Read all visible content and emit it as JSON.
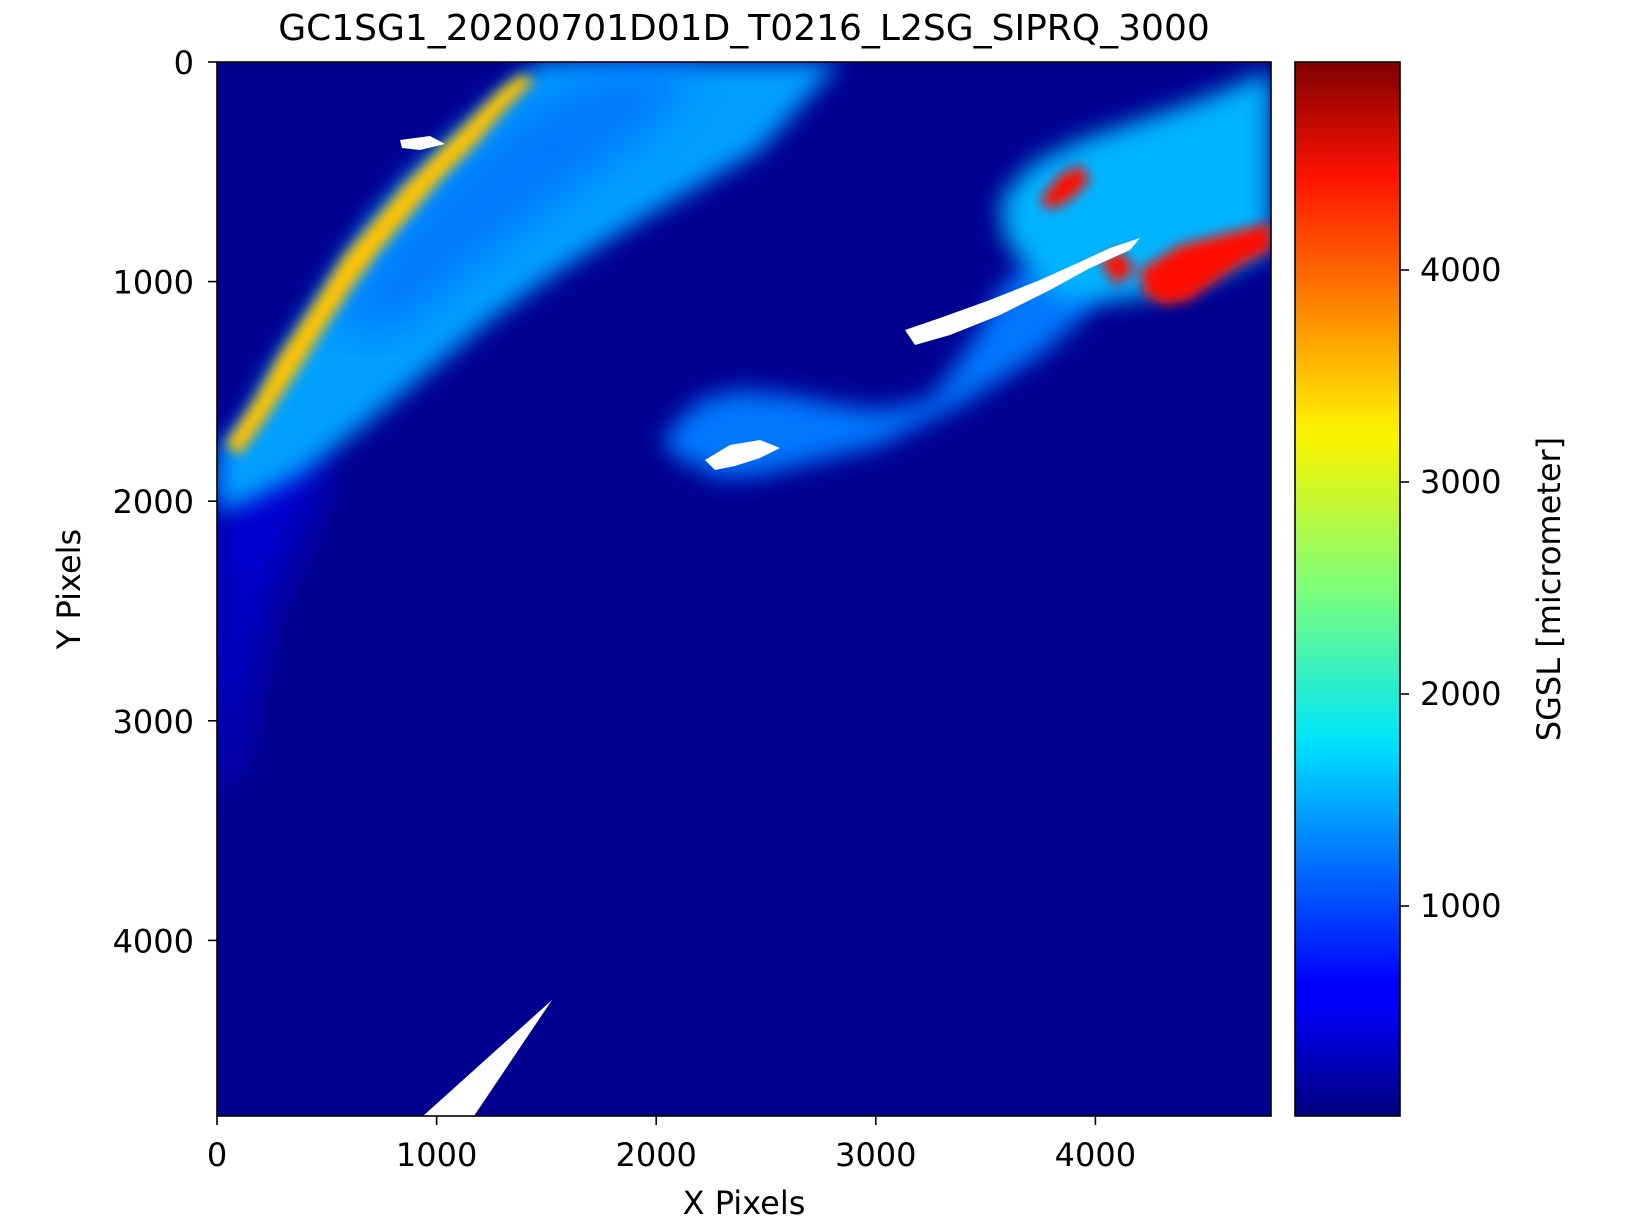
{
  "chart_data": {
    "type": "heatmap",
    "title": "GC1SG1_20200701D01D_T0216_L2SG_SIPRQ_3000",
    "xlabel": "X Pixels",
    "ylabel": "Y Pixels",
    "xlim": [
      0,
      4800
    ],
    "ylim": [
      4800,
      0
    ],
    "x_ticks": [
      0,
      1000,
      2000,
      3000,
      4000
    ],
    "y_ticks": [
      0,
      1000,
      2000,
      3000,
      4000
    ],
    "colormap": "jet",
    "colorbar": {
      "label": "SGSL [micrometer]",
      "range": [
        0,
        4970
      ],
      "ticks": [
        1000,
        2000,
        3000,
        4000
      ]
    },
    "no_data_color": "#ffffff",
    "grid": false,
    "regions": [
      {
        "name": "background ocean",
        "value": 80
      },
      {
        "name": "northwest land mass",
        "value": 1400
      },
      {
        "name": "northwest coastal band",
        "value": 3400
      },
      {
        "name": "central peninsula",
        "value": 1200
      },
      {
        "name": "northeast coast",
        "value": 1500
      },
      {
        "name": "northeast fjords",
        "value": 4300
      },
      {
        "name": "western water margin",
        "value": 450
      }
    ]
  }
}
